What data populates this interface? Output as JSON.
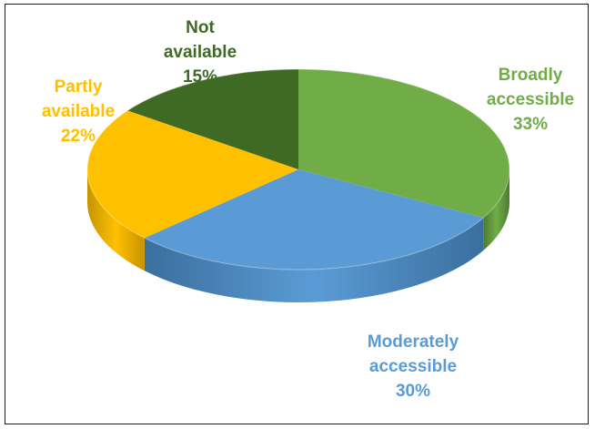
{
  "chart_data": {
    "type": "pie",
    "title": "",
    "slices": [
      {
        "label_lines": [
          "Broadly",
          "accessible"
        ],
        "pct_label": "33%",
        "value": 33,
        "color": "#70ad47",
        "side_color": "#4d7a30",
        "label_color": "#70ad47"
      },
      {
        "label_lines": [
          "Moderately",
          "accessible"
        ],
        "pct_label": "30%",
        "value": 30,
        "color": "#5b9bd5",
        "side_color": "#3a6f9e",
        "label_color": "#5b9bd5"
      },
      {
        "label_lines": [
          "Partly",
          "available"
        ],
        "pct_label": "22%",
        "value": 22,
        "color": "#ffc000",
        "side_color": "#c79300",
        "label_color": "#ffc000"
      },
      {
        "label_lines": [
          "Not",
          "available"
        ],
        "pct_label": "15%",
        "value": 15,
        "color": "#3f6a24",
        "side_color": "#2a4818",
        "label_color": "#3f6a24"
      }
    ],
    "legend": "none",
    "style": "3d-pie"
  }
}
